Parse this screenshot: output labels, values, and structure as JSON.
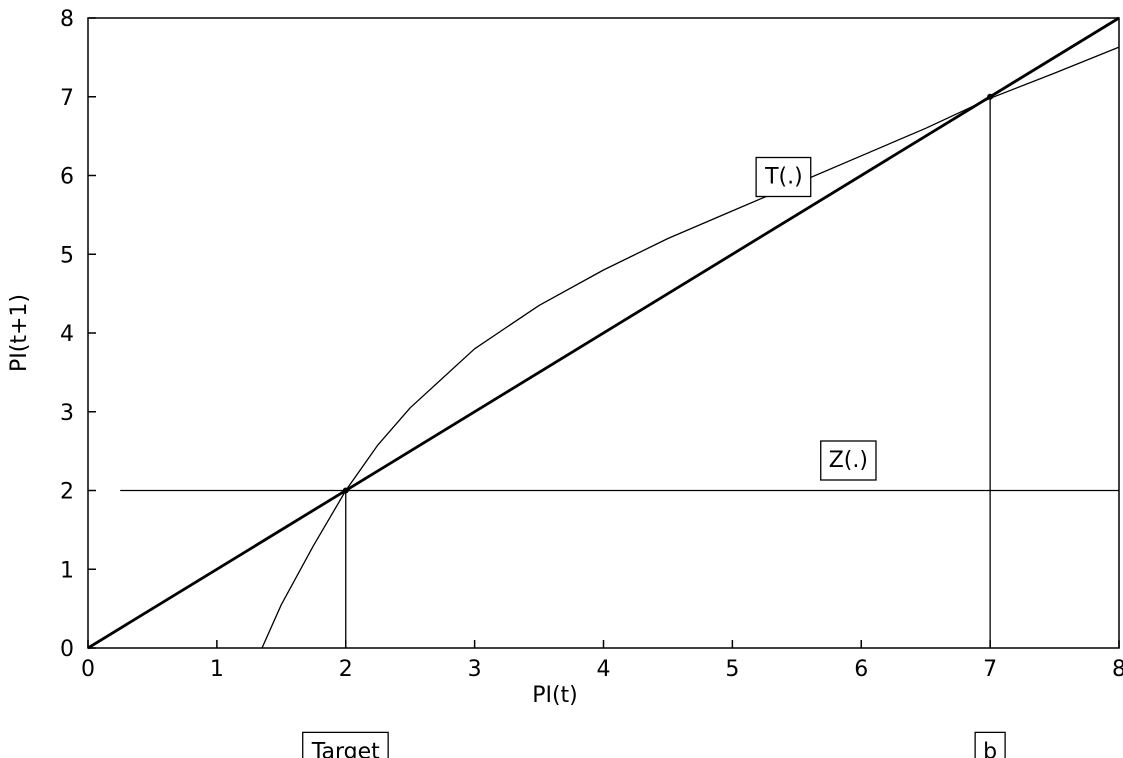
{
  "chart_data": {
    "type": "line",
    "xlabel": "PI(t)",
    "ylabel": "PI(t+1)",
    "xlim": [
      0,
      8
    ],
    "ylim": [
      0,
      8
    ],
    "x_ticks": [
      "0",
      "1",
      "2",
      "3",
      "4",
      "5",
      "6",
      "7",
      "8"
    ],
    "y_ticks": [
      "0",
      "1",
      "2",
      "3",
      "4",
      "5",
      "6",
      "7",
      "8"
    ],
    "grid": false,
    "series": [
      {
        "name": "",
        "style": "thick",
        "x": [
          0,
          8
        ],
        "y": [
          0,
          8
        ]
      },
      {
        "name": "T(.)",
        "style": "thin",
        "x": [
          1.35,
          1.5,
          1.75,
          2.0,
          2.25,
          2.5,
          3.0,
          3.5,
          4.0,
          4.5,
          5.0,
          5.5,
          6.0,
          6.5,
          7.0,
          7.5,
          8.0
        ],
        "y": [
          0.0,
          0.55,
          1.3,
          2.0,
          2.58,
          3.05,
          3.8,
          4.35,
          4.8,
          5.2,
          5.55,
          5.9,
          6.25,
          6.6,
          6.98,
          7.3,
          7.63
        ]
      },
      {
        "name": "Z(.)",
        "style": "thin",
        "x": [
          0.25,
          8
        ],
        "y": [
          2,
          2
        ]
      }
    ],
    "vertical_markers": [
      {
        "x": 2,
        "y_from": 0,
        "y_to": 2
      },
      {
        "x": 7,
        "y_from": 0,
        "y_to": 7
      }
    ],
    "annotations": [
      {
        "text": "T(.)",
        "x": 5.4,
        "y": 6.0
      },
      {
        "text": "Z(.)",
        "x": 5.9,
        "y": 2.4
      },
      {
        "text": "Target",
        "x": 2,
        "y": -1.3
      },
      {
        "text": "b",
        "x": 7,
        "y": -1.3
      }
    ]
  }
}
